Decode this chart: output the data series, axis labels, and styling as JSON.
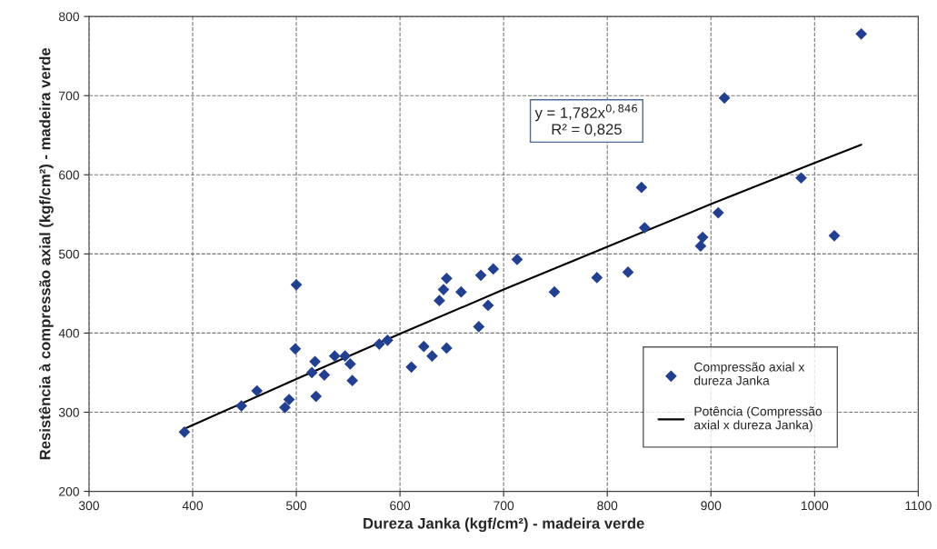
{
  "chart_data": {
    "type": "scatter",
    "xlabel": "Dureza Janka (kgf/cm²) - madeira verde",
    "ylabel": "Resistência à compressão axial (kgf/cm²) - madeira verde",
    "xlim": [
      300,
      1100
    ],
    "xticks": [
      300,
      400,
      500,
      600,
      700,
      800,
      900,
      1000,
      1100
    ],
    "ylim": [
      200,
      800
    ],
    "yticks": [
      200,
      300,
      400,
      500,
      600,
      700,
      800
    ],
    "grid": true,
    "legend": "bottom right",
    "marker": "diamond",
    "annotations": [
      "y = 1,782x$^{0,846}$\nR² = 0,825"
    ],
    "series": [
      {
        "name": "Compressão axial x dureza Janka",
        "color": "#233f8f",
        "x": [
          392,
          447,
          462,
          489,
          493,
          499,
          500,
          515,
          518,
          519,
          527,
          537,
          547,
          552,
          554,
          580,
          588,
          611,
          623,
          631,
          638,
          642,
          645,
          645,
          659,
          676,
          678,
          685,
          690,
          713,
          749,
          790,
          820,
          833,
          836,
          890,
          892,
          907,
          913,
          987,
          1019,
          1045
        ],
        "values": [
          275,
          308,
          327,
          306,
          316,
          380,
          461,
          350,
          364,
          320,
          347,
          371,
          371,
          361,
          340,
          386,
          391,
          357,
          383,
          371,
          441,
          455,
          469,
          381,
          452,
          408,
          473,
          435,
          481,
          493,
          452,
          470,
          477,
          584,
          533,
          510,
          521,
          552,
          697,
          596,
          523,
          778
        ]
      },
      {
        "name": "Potência (Compressão axial x dureza Janka)",
        "type": "line",
        "color": "#000000",
        "marker": "none",
        "line_style": "solid",
        "x": [
          392,
          500,
          600,
          700,
          800,
          900,
          1000,
          1045
        ],
        "values": [
          279,
          342,
          399,
          455,
          509,
          563,
          615,
          638
        ]
      }
    ]
  }
}
